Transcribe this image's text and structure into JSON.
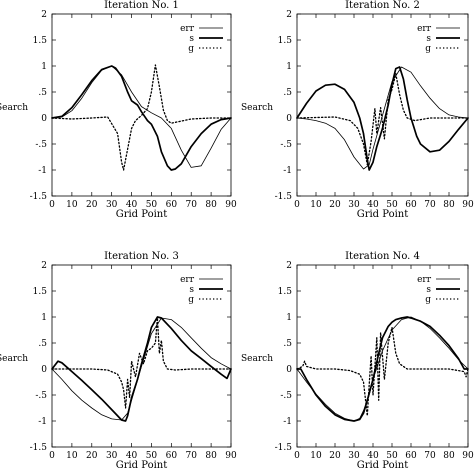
{
  "chart_data": [
    {
      "type": "line",
      "title": "Iteration No. 1",
      "xlabel": "Grid Point",
      "ylabel": "Search",
      "xlim": [
        0,
        90
      ],
      "ylim": [
        -1.5,
        2
      ],
      "xticks": [
        0,
        10,
        20,
        30,
        40,
        50,
        60,
        70,
        80,
        90
      ],
      "yticks": [
        -1.5,
        -1,
        -0.5,
        0,
        0.5,
        1,
        1.5,
        2
      ],
      "legend_position": "top-right",
      "series": [
        {
          "name": "err",
          "style": "thin",
          "x": [
            0,
            5,
            10,
            15,
            20,
            25,
            30,
            35,
            40,
            45,
            50,
            55,
            60,
            65,
            70,
            75,
            80,
            85,
            90
          ],
          "y": [
            0,
            0.02,
            0.14,
            0.38,
            0.68,
            0.92,
            1.0,
            0.83,
            0.5,
            0.22,
            0.1,
            0.0,
            -0.2,
            -0.62,
            -0.95,
            -0.92,
            -0.58,
            -0.22,
            0
          ]
        },
        {
          "name": "s",
          "style": "thick",
          "x": [
            0,
            5,
            10,
            15,
            20,
            25,
            30,
            32,
            35,
            38,
            40,
            43,
            45,
            48,
            50,
            53,
            55,
            58,
            60,
            62,
            65,
            70,
            75,
            80,
            85,
            90
          ],
          "y": [
            0,
            0.03,
            0.2,
            0.45,
            0.72,
            0.93,
            1.0,
            0.96,
            0.8,
            0.5,
            0.33,
            0.25,
            0.12,
            -0.05,
            -0.12,
            -0.35,
            -0.65,
            -0.92,
            -1.0,
            -0.98,
            -0.88,
            -0.55,
            -0.3,
            -0.12,
            -0.03,
            0
          ]
        },
        {
          "name": "g",
          "style": "dotted",
          "x": [
            0,
            10,
            20,
            28,
            33,
            35,
            36,
            38,
            40,
            42,
            45,
            48,
            50,
            52,
            54,
            56,
            58,
            60,
            70,
            80,
            90
          ],
          "y": [
            0,
            -0.02,
            0,
            0.02,
            -0.3,
            -0.85,
            -1.0,
            -0.6,
            -0.2,
            -0.05,
            0.05,
            0.18,
            0.5,
            1.02,
            0.6,
            0.15,
            -0.05,
            -0.1,
            -0.02,
            0,
            0
          ]
        }
      ]
    },
    {
      "type": "line",
      "title": "Iteration No. 2",
      "xlabel": "Grid Point",
      "ylabel": "Search",
      "xlim": [
        0,
        90
      ],
      "ylim": [
        -1.5,
        2
      ],
      "xticks": [
        0,
        10,
        20,
        30,
        40,
        50,
        60,
        70,
        80,
        90
      ],
      "yticks": [
        -1.5,
        -1,
        -0.5,
        0,
        0.5,
        1,
        1.5,
        2
      ],
      "legend_position": "top-right",
      "series": [
        {
          "name": "err",
          "style": "thin",
          "x": [
            0,
            5,
            10,
            15,
            20,
            25,
            30,
            35,
            38,
            40,
            45,
            50,
            55,
            60,
            65,
            70,
            75,
            80,
            85,
            90
          ],
          "y": [
            0,
            -0.02,
            -0.05,
            -0.1,
            -0.2,
            -0.42,
            -0.75,
            -0.98,
            -0.9,
            -0.6,
            0.05,
            0.7,
            0.98,
            0.88,
            0.62,
            0.38,
            0.18,
            0.06,
            0.02,
            0
          ]
        },
        {
          "name": "s",
          "style": "thick",
          "x": [
            0,
            5,
            10,
            15,
            20,
            25,
            30,
            33,
            35,
            37,
            38,
            40,
            42,
            45,
            48,
            50,
            52,
            54,
            56,
            58,
            60,
            63,
            65,
            70,
            75,
            80,
            85,
            90
          ],
          "y": [
            0,
            0.28,
            0.52,
            0.63,
            0.65,
            0.55,
            0.3,
            0.0,
            -0.3,
            -0.8,
            -1.0,
            -0.85,
            -0.55,
            -0.2,
            0.25,
            0.65,
            0.95,
            0.98,
            0.75,
            0.35,
            0.0,
            -0.35,
            -0.5,
            -0.65,
            -0.62,
            -0.45,
            -0.22,
            0
          ]
        },
        {
          "name": "g",
          "style": "dotted",
          "x": [
            0,
            10,
            20,
            28,
            32,
            35,
            37,
            39,
            41,
            42,
            44,
            46,
            48,
            50,
            52,
            54,
            56,
            58,
            62,
            70,
            80,
            90
          ],
          "y": [
            0,
            0.01,
            0.02,
            -0.05,
            -0.2,
            -0.5,
            -0.9,
            -0.45,
            0.18,
            -0.3,
            0.2,
            -0.4,
            0.35,
            0.55,
            0.85,
            0.45,
            0.15,
            0.0,
            -0.05,
            0,
            0,
            0
          ]
        }
      ]
    },
    {
      "type": "line",
      "title": "Iteration No. 3",
      "xlabel": "Grid Point",
      "ylabel": "Search",
      "xlim": [
        0,
        90
      ],
      "ylim": [
        -1.5,
        2
      ],
      "xticks": [
        0,
        10,
        20,
        30,
        40,
        50,
        60,
        70,
        80,
        90
      ],
      "yticks": [
        -1.5,
        -1,
        -0.5,
        0,
        0.5,
        1,
        1.5,
        2
      ],
      "legend_position": "top-right",
      "series": [
        {
          "name": "err",
          "style": "thin",
          "x": [
            0,
            5,
            10,
            15,
            20,
            25,
            30,
            35,
            38,
            40,
            45,
            50,
            55,
            60,
            65,
            70,
            75,
            80,
            85,
            90
          ],
          "y": [
            0,
            -0.2,
            -0.42,
            -0.6,
            -0.75,
            -0.88,
            -0.96,
            -0.98,
            -0.85,
            -0.6,
            0.05,
            0.68,
            0.98,
            0.95,
            0.8,
            0.6,
            0.4,
            0.22,
            0.1,
            0
          ]
        },
        {
          "name": "s",
          "style": "thick",
          "x": [
            0,
            3,
            5,
            10,
            15,
            20,
            25,
            30,
            35,
            37,
            38,
            40,
            43,
            45,
            48,
            50,
            53,
            55,
            60,
            65,
            70,
            75,
            80,
            85,
            88,
            90
          ],
          "y": [
            0,
            0.15,
            0.12,
            -0.05,
            -0.22,
            -0.4,
            -0.58,
            -0.78,
            -0.98,
            -1.0,
            -0.9,
            -0.55,
            -0.2,
            0.1,
            0.5,
            0.8,
            1.0,
            0.98,
            0.78,
            0.55,
            0.35,
            0.2,
            0.05,
            -0.1,
            -0.18,
            0
          ]
        },
        {
          "name": "g",
          "style": "dotted",
          "x": [
            0,
            10,
            20,
            28,
            33,
            35,
            36,
            37,
            38,
            39,
            40,
            42,
            44,
            46,
            48,
            50,
            52,
            53,
            54,
            55,
            56,
            58,
            62,
            70,
            80,
            90
          ],
          "y": [
            0,
            0,
            0,
            -0.02,
            -0.1,
            -0.25,
            -0.4,
            -0.75,
            -0.2,
            -0.55,
            0.15,
            -0.15,
            0.3,
            0.1,
            0.35,
            0.4,
            0.5,
            0.98,
            0.3,
            0.55,
            0.15,
            0,
            -0.02,
            0,
            0,
            0
          ]
        }
      ]
    },
    {
      "type": "line",
      "title": "Iteration No. 4",
      "xlabel": "Grid Point",
      "ylabel": "Search",
      "xlim": [
        0,
        90
      ],
      "ylim": [
        -1.5,
        2
      ],
      "xticks": [
        0,
        10,
        20,
        30,
        40,
        50,
        60,
        70,
        80,
        90
      ],
      "yticks": [
        -1.5,
        -1,
        -0.5,
        0,
        0.5,
        1,
        1.5,
        2
      ],
      "legend_position": "top-right",
      "series": [
        {
          "name": "err",
          "style": "thin",
          "x": [
            0,
            5,
            10,
            15,
            20,
            25,
            30,
            33,
            35,
            38,
            40,
            45,
            50,
            55,
            60,
            65,
            70,
            75,
            80,
            85,
            90
          ],
          "y": [
            0,
            -0.25,
            -0.48,
            -0.68,
            -0.85,
            -0.95,
            -1.0,
            -0.95,
            -0.8,
            -0.5,
            -0.2,
            0.35,
            0.75,
            0.95,
            1.0,
            0.92,
            0.78,
            0.6,
            0.4,
            0.18,
            0
          ]
        },
        {
          "name": "s",
          "style": "thick",
          "x": [
            0,
            2,
            5,
            10,
            15,
            20,
            25,
            30,
            33,
            35,
            37,
            40,
            43,
            45,
            48,
            50,
            52,
            55,
            58,
            60,
            65,
            70,
            75,
            80,
            85,
            88,
            90
          ],
          "y": [
            0,
            0,
            -0.2,
            -0.5,
            -0.72,
            -0.88,
            -0.97,
            -1.0,
            -0.97,
            -0.85,
            -0.6,
            -0.2,
            0.3,
            0.6,
            0.82,
            0.9,
            0.95,
            0.98,
            1.0,
            0.98,
            0.92,
            0.82,
            0.65,
            0.45,
            0.2,
            0,
            0
          ]
        },
        {
          "name": "g",
          "style": "dotted",
          "x": [
            0,
            3,
            4,
            5,
            10,
            20,
            28,
            33,
            35,
            37,
            38,
            39,
            40,
            42,
            43,
            44,
            46,
            48,
            50,
            52,
            54,
            56,
            58,
            62,
            70,
            80,
            88,
            89,
            90
          ],
          "y": [
            0,
            0.05,
            0.15,
            0.05,
            0,
            0,
            -0.03,
            -0.1,
            -0.25,
            -0.9,
            -0.3,
            0.25,
            -0.5,
            0.6,
            -0.6,
            0.7,
            -0.2,
            0.5,
            0.8,
            0.3,
            0.1,
            0.05,
            0,
            0,
            0,
            0,
            -0.05,
            -0.15,
            0
          ]
        }
      ]
    }
  ],
  "colors": {
    "line": "#000000",
    "background": "#ffffff"
  }
}
